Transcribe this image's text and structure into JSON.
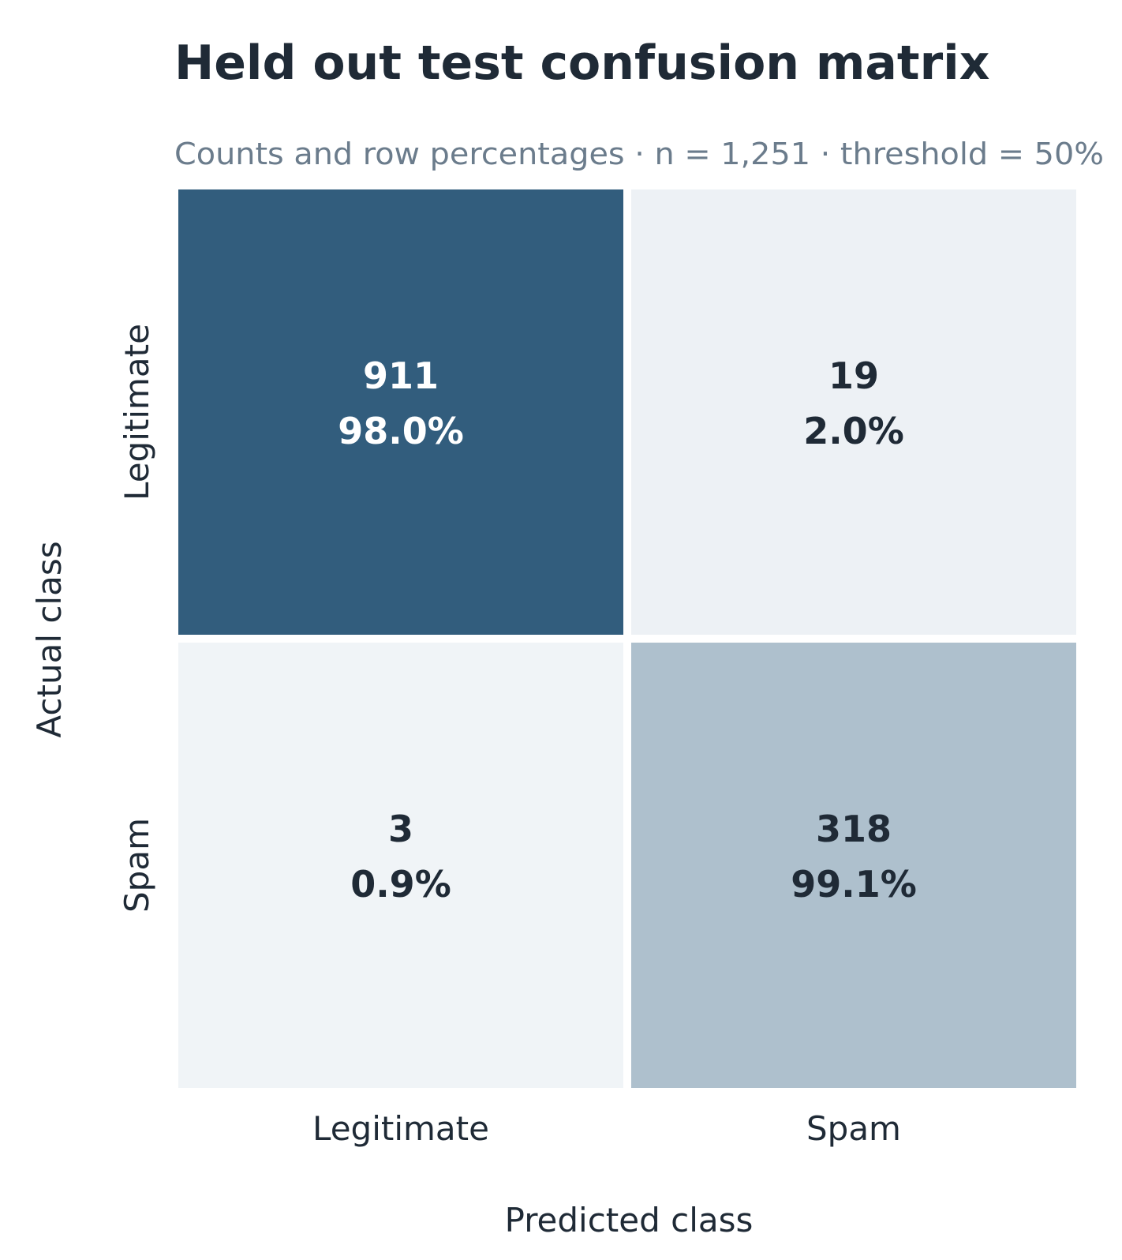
{
  "chart_data": {
    "type": "heatmap",
    "title": "Held out test confusion matrix",
    "subtitle": "Counts and row percentages · n = 1,251 · threshold = 50%",
    "xlabel": "Predicted class",
    "ylabel": "Actual class",
    "x_categories": [
      "Legitimate",
      "Spam"
    ],
    "y_categories": [
      "Legitimate",
      "Spam"
    ],
    "counts": [
      [
        911,
        19
      ],
      [
        3,
        318
      ]
    ],
    "count_labels": [
      [
        "911",
        "19"
      ],
      [
        "3",
        "318"
      ]
    ],
    "percent_labels": [
      [
        "98.0%",
        "2.0%"
      ],
      [
        "0.9%",
        "99.1%"
      ]
    ],
    "colors": {
      "high": "#325d7d",
      "low": "#f0f4f7",
      "text_dark": "#1f2a36",
      "text_light": "#ffffff"
    },
    "grid": false,
    "legend": "none"
  }
}
